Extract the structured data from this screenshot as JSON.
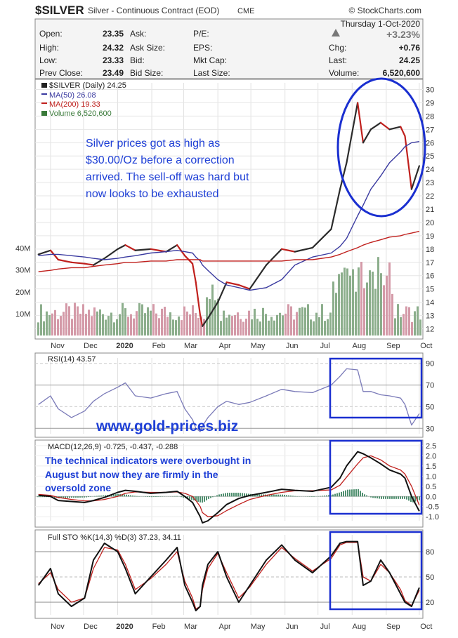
{
  "header": {
    "symbol": "$SILVER",
    "description": "Silver - Continuous Contract (EOD)",
    "exchange": "CME",
    "brand": "© StockCharts.com",
    "date": "Thursday 1-Oct-2020",
    "change_pct": "+3.23%"
  },
  "quote": {
    "open_label": "Open:",
    "open": "23.35",
    "high_label": "High:",
    "high": "24.32",
    "low_label": "Low:",
    "low": "23.33",
    "prev_label": "Prev Close:",
    "prev": "23.49",
    "ask_label": "Ask:",
    "asksize_label": "Ask Size:",
    "bid_label": "Bid:",
    "bidsize_label": "Bid Size:",
    "pe_label": "P/E:",
    "eps_label": "EPS:",
    "mktcap_label": "Mkt Cap:",
    "lastsize_label": "Last Size:",
    "chg_label": "Chg:",
    "chg": "+0.76",
    "last_label": "Last:",
    "last": "24.25",
    "volume_label": "Volume:",
    "volume": "6,520,600"
  },
  "legend": {
    "price": "$SILVER (Daily) 24.25",
    "ma50": "MA(50) 26.08",
    "ma200": "MA(200) 19.33",
    "vol": "Volume 6,520,600"
  },
  "annotations": {
    "silver_note": [
      "Silver prices got as high as",
      "$30.00/Oz before a correction",
      "arrived. The sell-off was hard but",
      "now looks to be exhausted"
    ],
    "website": "www.gold-prices.biz",
    "tech_note": [
      "The technical indicators were overbought in",
      "August but now they are firmly in the",
      "oversold zone"
    ]
  },
  "panels": {
    "rsi_label": "RSI(14) 43.57",
    "macd_label": "MACD(12,26,9) -0.725, -0.437, -0.288",
    "sto_label": "Full STO %K(14,3) %D(3) 37.23, 34.11"
  },
  "colors": {
    "background": "#ffffff",
    "panel_border": "#888888",
    "price_up": "#2b2b2b",
    "price_down": "#c0201d",
    "ma50": "#3a3aa0",
    "ma200": "#c0201d",
    "annotation": "#1e3fd6",
    "highlight": "#1a2fd0",
    "vol_up": "#8cae8c",
    "vol_down": "#d49aa8"
  },
  "chart_data": [
    {
      "type": "line",
      "title": "$SILVER (Daily)",
      "x_ticks": [
        "Nov",
        "Dec",
        "2020",
        "Feb",
        "Mar",
        "Apr",
        "May",
        "Jun",
        "Jul",
        "Aug",
        "Sep",
        "Oct"
      ],
      "y_ticks": [
        12,
        13,
        14,
        15,
        16,
        17,
        18,
        19,
        20,
        21,
        22,
        23,
        24,
        25,
        26,
        27,
        28,
        29,
        30
      ],
      "ylim": [
        11.5,
        30.5
      ],
      "vol_ticks": [
        "40M",
        "30M",
        "20M",
        "10M"
      ],
      "vol_ylim": [
        0,
        45
      ],
      "x": [
        "2019-10-21",
        "2019-11-01",
        "2019-11-08",
        "2019-11-20",
        "2019-12-02",
        "2019-12-10",
        "2019-12-20",
        "2020-01-01",
        "2020-01-08",
        "2020-01-17",
        "2020-01-31",
        "2020-02-14",
        "2020-02-24",
        "2020-03-02",
        "2020-03-09",
        "2020-03-12",
        "2020-03-16",
        "2020-03-18",
        "2020-03-23",
        "2020-04-01",
        "2020-04-09",
        "2020-04-20",
        "2020-04-30",
        "2020-05-15",
        "2020-05-29",
        "2020-06-10",
        "2020-06-26",
        "2020-07-13",
        "2020-07-21",
        "2020-07-27",
        "2020-08-06",
        "2020-08-11",
        "2020-08-18",
        "2020-08-27",
        "2020-09-04",
        "2020-09-14",
        "2020-09-18",
        "2020-09-24",
        "2020-10-01"
      ],
      "series": [
        {
          "name": "$SILVER",
          "values": [
            17.6,
            17.9,
            17.2,
            17.0,
            16.9,
            16.8,
            17.3,
            18.0,
            18.3,
            17.9,
            18.0,
            17.8,
            18.3,
            17.5,
            16.9,
            15.5,
            13.0,
            12.2,
            12.8,
            14.0,
            15.5,
            15.3,
            15.0,
            16.8,
            18.0,
            17.8,
            18.1,
            19.5,
            22.5,
            24.5,
            29.0,
            26.0,
            27.0,
            27.5,
            27.0,
            27.2,
            26.5,
            22.5,
            24.25
          ]
        },
        {
          "name": "MA(50)",
          "values": [
            17.5,
            17.6,
            17.6,
            17.5,
            17.4,
            17.3,
            17.2,
            17.3,
            17.4,
            17.5,
            17.7,
            17.8,
            17.9,
            17.8,
            17.7,
            17.4,
            17.1,
            16.8,
            16.4,
            15.7,
            15.3,
            15.1,
            14.9,
            15.1,
            15.7,
            16.8,
            17.4,
            17.7,
            18.2,
            18.8,
            20.5,
            21.3,
            22.5,
            23.5,
            24.5,
            25.3,
            25.7,
            26.0,
            26.08
          ]
        },
        {
          "name": "MA(200)",
          "values": [
            16.3,
            16.4,
            16.5,
            16.6,
            16.6,
            16.7,
            16.8,
            16.9,
            17.0,
            17.0,
            17.1,
            17.1,
            17.2,
            17.2,
            17.2,
            17.2,
            17.2,
            17.1,
            17.1,
            17.1,
            17.1,
            17.1,
            17.1,
            17.1,
            17.1,
            17.2,
            17.2,
            17.4,
            17.6,
            17.8,
            18.1,
            18.3,
            18.5,
            18.7,
            18.9,
            19.0,
            19.1,
            19.2,
            19.33
          ]
        }
      ]
    },
    {
      "type": "line",
      "title": "RSI(14)",
      "y_ticks": [
        30,
        50,
        70,
        90
      ],
      "ylim": [
        25,
        95
      ],
      "series": [
        {
          "name": "RSI(14)",
          "values": [
            52,
            60,
            48,
            40,
            46,
            55,
            62,
            68,
            72,
            60,
            58,
            62,
            64,
            48,
            38,
            30,
            27,
            32,
            40,
            50,
            55,
            52,
            54,
            60,
            66,
            64,
            63,
            70,
            78,
            85,
            84,
            64,
            64,
            61,
            60,
            58,
            52,
            33,
            43.57
          ]
        }
      ]
    },
    {
      "type": "line",
      "title": "MACD(12,26,9)",
      "y_ticks": [
        -1.0,
        -0.5,
        0.0,
        0.5,
        1.0,
        1.5,
        2.0,
        2.5
      ],
      "ylim": [
        -1.2,
        2.6
      ],
      "series": [
        {
          "name": "MACD",
          "values": [
            0.05,
            0.0,
            -0.2,
            -0.25,
            -0.3,
            -0.2,
            -0.05,
            0.2,
            0.3,
            0.25,
            0.15,
            0.2,
            0.25,
            0.0,
            -0.3,
            -0.6,
            -1.0,
            -1.3,
            -1.2,
            -0.8,
            -0.4,
            -0.1,
            0.05,
            0.2,
            0.35,
            0.3,
            0.25,
            0.45,
            0.9,
            1.5,
            2.2,
            2.1,
            1.9,
            1.6,
            1.3,
            1.1,
            0.9,
            0.0,
            -0.725
          ]
        },
        {
          "name": "Signal",
          "values": [
            0.1,
            0.05,
            -0.05,
            -0.15,
            -0.22,
            -0.22,
            -0.15,
            0.0,
            0.15,
            0.22,
            0.2,
            0.2,
            0.22,
            0.15,
            0.0,
            -0.2,
            -0.5,
            -0.8,
            -1.0,
            -0.95,
            -0.7,
            -0.4,
            -0.15,
            0.05,
            0.2,
            0.28,
            0.28,
            0.32,
            0.55,
            0.95,
            1.6,
            1.9,
            2.0,
            1.8,
            1.5,
            1.3,
            1.1,
            0.5,
            -0.437
          ]
        }
      ]
    },
    {
      "type": "line",
      "title": "Full STO %K(14,3) %D(3)",
      "y_ticks": [
        20,
        50,
        80
      ],
      "ylim": [
        5,
        100
      ],
      "series": [
        {
          "name": "%K",
          "values": [
            40,
            60,
            30,
            15,
            25,
            70,
            90,
            80,
            60,
            30,
            50,
            70,
            85,
            40,
            20,
            10,
            15,
            40,
            65,
            80,
            50,
            20,
            40,
            70,
            88,
            70,
            55,
            75,
            90,
            92,
            92,
            40,
            45,
            70,
            55,
            30,
            20,
            15,
            37.23
          ]
        },
        {
          "name": "%D",
          "values": [
            42,
            55,
            35,
            20,
            25,
            60,
            85,
            82,
            65,
            35,
            48,
            65,
            80,
            45,
            25,
            12,
            15,
            35,
            60,
            78,
            55,
            25,
            38,
            65,
            85,
            72,
            57,
            72,
            88,
            91,
            91,
            50,
            45,
            65,
            55,
            35,
            22,
            16,
            34.11
          ]
        }
      ]
    }
  ]
}
